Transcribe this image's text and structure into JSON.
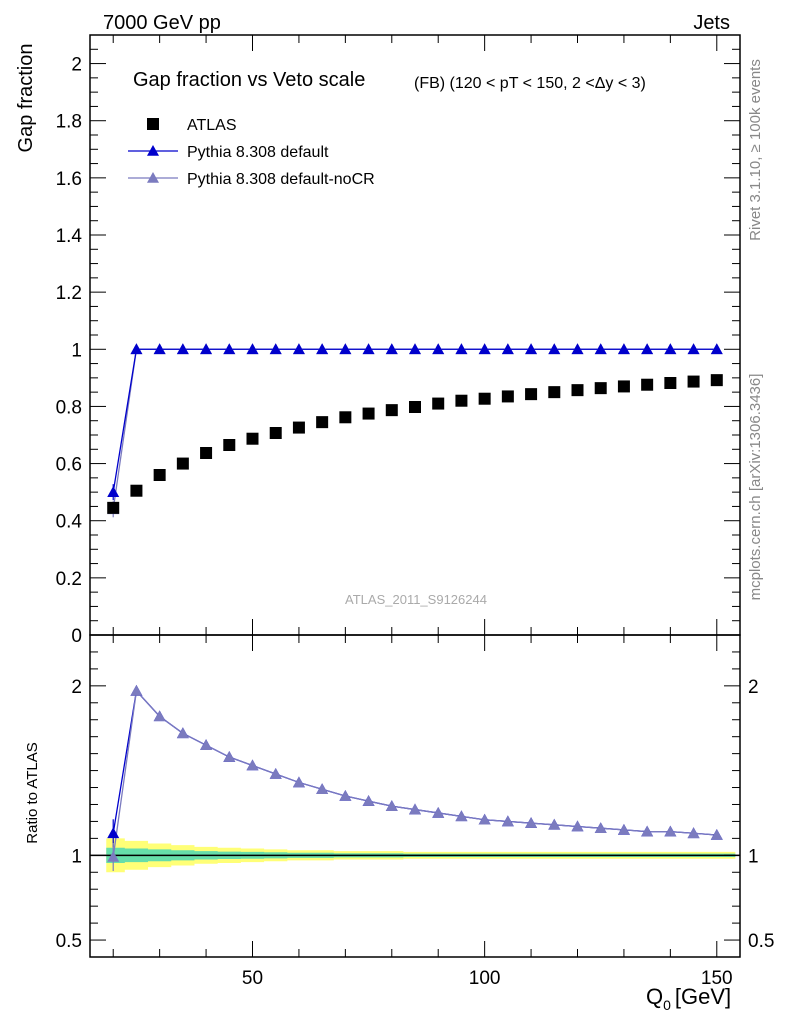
{
  "header": {
    "left": "7000 GeV pp",
    "right": "Jets"
  },
  "side_labels": {
    "rivet": "Rivet 3.1.10, ≥ 100k events",
    "mcplots": "mcplots.cern.ch [arXiv:1306.3436]"
  },
  "watermark": "ATLAS_2011_S9126244",
  "colors": {
    "atlas": "#000000",
    "default": "#0000cc",
    "nocr": "#7b7bbf",
    "band_inner": "#66ddaa",
    "band_outer": "#ffff77"
  },
  "chart_data": [
    {
      "type": "scatter",
      "panel": "main",
      "title": "Gap fraction vs Veto scale",
      "subtitle": "(FB) (120 < pT < 150, 2 <Δy < 3)",
      "ylabel": "Gap fraction",
      "xlim": [
        15,
        155
      ],
      "ylim": [
        0,
        2.1
      ],
      "y_ticks": [
        0,
        0.2,
        0.4,
        0.6,
        0.8,
        1,
        1.2,
        1.4,
        1.6,
        1.8,
        2
      ],
      "y_tick_labels": [
        "0",
        "0.2",
        "0.4",
        "0.6",
        "0.8",
        "1",
        "1.2",
        "1.4",
        "1.6",
        "1.8",
        "2"
      ],
      "legend_position": "top-left",
      "x": [
        20,
        25,
        30,
        35,
        40,
        45,
        50,
        55,
        60,
        65,
        70,
        75,
        80,
        85,
        90,
        95,
        100,
        105,
        110,
        115,
        120,
        125,
        130,
        135,
        140,
        145,
        150
      ],
      "series": [
        {
          "name": "ATLAS",
          "marker": "square",
          "values": [
            0.445,
            0.505,
            0.56,
            0.6,
            0.637,
            0.665,
            0.687,
            0.707,
            0.726,
            0.745,
            0.762,
            0.775,
            0.787,
            0.798,
            0.81,
            0.82,
            0.827,
            0.835,
            0.843,
            0.85,
            0.857,
            0.864,
            0.87,
            0.876,
            0.882,
            0.887,
            0.892
          ]
        },
        {
          "name": "Pythia 8.308 default",
          "marker": "triangle",
          "values": [
            0.5,
            1.0,
            1.0,
            1.0,
            1.0,
            1.0,
            1.0,
            1.0,
            1.0,
            1.0,
            1.0,
            1.0,
            1.0,
            1.0,
            1.0,
            1.0,
            1.0,
            1.0,
            1.0,
            1.0,
            1.0,
            1.0,
            1.0,
            1.0,
            1.0,
            1.0,
            1.0
          ]
        },
        {
          "name": "Pythia 8.308 default-noCR",
          "marker": "triangle",
          "values": [
            0.44,
            1.0,
            1.0,
            1.0,
            1.0,
            1.0,
            1.0,
            1.0,
            1.0,
            1.0,
            1.0,
            1.0,
            1.0,
            1.0,
            1.0,
            1.0,
            1.0,
            1.0,
            1.0,
            1.0,
            1.0,
            1.0,
            1.0,
            1.0,
            1.0,
            1.0,
            1.0
          ]
        }
      ]
    },
    {
      "type": "line",
      "panel": "ratio",
      "ylabel": "Ratio to ATLAS",
      "xlabel": "Q",
      "xlabel_sub": "0",
      "xlabel_unit": "[GeV]",
      "xlim": [
        15,
        155
      ],
      "ylim": [
        0.4,
        2.3
      ],
      "x_ticks": [
        50,
        100,
        150
      ],
      "x_tick_labels": [
        "50",
        "100",
        "150"
      ],
      "y_ticks": [
        0.5,
        1,
        2
      ],
      "y_tick_labels": [
        "0.5",
        "1",
        "2"
      ],
      "x": [
        20,
        25,
        30,
        35,
        40,
        45,
        50,
        55,
        60,
        65,
        70,
        75,
        80,
        85,
        90,
        95,
        100,
        105,
        110,
        115,
        120,
        125,
        130,
        135,
        140,
        145,
        150
      ],
      "series": [
        {
          "name": "Pythia 8.308 default",
          "values": [
            1.13,
            1.97,
            1.82,
            1.72,
            1.65,
            1.58,
            1.53,
            1.48,
            1.43,
            1.39,
            1.35,
            1.32,
            1.29,
            1.27,
            1.25,
            1.23,
            1.21,
            1.2,
            1.19,
            1.18,
            1.17,
            1.16,
            1.15,
            1.14,
            1.14,
            1.13,
            1.12
          ]
        },
        {
          "name": "Pythia 8.308 default-noCR",
          "values": [
            0.99,
            1.97,
            1.82,
            1.72,
            1.65,
            1.58,
            1.53,
            1.48,
            1.43,
            1.39,
            1.35,
            1.32,
            1.29,
            1.27,
            1.25,
            1.23,
            1.21,
            1.2,
            1.19,
            1.18,
            1.17,
            1.16,
            1.15,
            1.14,
            1.14,
            1.13,
            1.12
          ]
        }
      ],
      "band_outer": [
        0.1,
        0.085,
        0.07,
        0.06,
        0.05,
        0.045,
        0.04,
        0.035,
        0.03,
        0.03,
        0.025,
        0.025,
        0.025,
        0.02,
        0.02,
        0.02,
        0.02,
        0.02,
        0.02,
        0.02,
        0.02,
        0.02,
        0.02,
        0.02,
        0.02,
        0.02,
        0.02
      ],
      "band_inner": [
        0.045,
        0.04,
        0.035,
        0.03,
        0.025,
        0.022,
        0.02,
        0.018,
        0.015,
        0.015,
        0.012,
        0.012,
        0.012,
        0.01,
        0.01,
        0.01,
        0.01,
        0.01,
        0.01,
        0.01,
        0.01,
        0.01,
        0.01,
        0.01,
        0.01,
        0.01,
        0.01
      ]
    }
  ]
}
